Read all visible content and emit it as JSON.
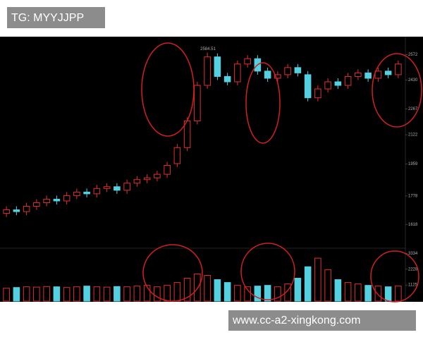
{
  "chart_data": {
    "type": "candlestick",
    "annotations": [
      "TG: MYYJJPP",
      "www.cc-a2-xingkong.com",
      "2584.51"
    ],
    "open": [
      1680,
      1700,
      1690,
      1720,
      1740,
      1760,
      1750,
      1780,
      1800,
      1790,
      1820,
      1830,
      1810,
      1850,
      1870,
      1880,
      1900,
      1960,
      2050,
      2200,
      2400,
      2560,
      2450,
      2420,
      2520,
      2550,
      2480,
      2440,
      2460,
      2500,
      2460,
      2330,
      2380,
      2420,
      2400,
      2450,
      2470,
      2440,
      2480,
      2460
    ],
    "high": [
      1720,
      1720,
      1740,
      1760,
      1780,
      1780,
      1800,
      1820,
      1820,
      1840,
      1850,
      1850,
      1870,
      1890,
      1900,
      1920,
      1970,
      2070,
      2220,
      2420,
      2584,
      2580,
      2470,
      2540,
      2570,
      2570,
      2500,
      2480,
      2520,
      2520,
      2480,
      2400,
      2440,
      2440,
      2470,
      2490,
      2490,
      2500,
      2500,
      2540
    ],
    "low": [
      1660,
      1670,
      1670,
      1700,
      1720,
      1730,
      1730,
      1760,
      1770,
      1770,
      1800,
      1790,
      1790,
      1830,
      1850,
      1860,
      1880,
      1940,
      2030,
      2180,
      2380,
      2430,
      2400,
      2400,
      2500,
      2460,
      2420,
      2420,
      2440,
      2450,
      2310,
      2310,
      2360,
      2380,
      2380,
      2430,
      2420,
      2420,
      2440,
      2440
    ],
    "close": [
      1700,
      1690,
      1720,
      1740,
      1760,
      1750,
      1780,
      1800,
      1790,
      1820,
      1830,
      1810,
      1850,
      1870,
      1880,
      1900,
      1950,
      2050,
      2200,
      2400,
      2560,
      2450,
      2420,
      2520,
      2550,
      2480,
      2440,
      2460,
      2500,
      2470,
      2330,
      2380,
      2420,
      2400,
      2450,
      2470,
      2440,
      2480,
      2460,
      2520
    ],
    "volume": [
      900,
      950,
      1000,
      980,
      1020,
      1000,
      950,
      1000,
      1050,
      1000,
      980,
      1020,
      1000,
      1050,
      1100,
      1000,
      1100,
      1300,
      1600,
      1900,
      1800,
      1500,
      1300,
      1100,
      1000,
      1050,
      1100,
      1000,
      1200,
      1600,
      2400,
      3000,
      2200,
      1500,
      1300,
      1200,
      1100,
      1050,
      1000,
      1050
    ],
    "ylim": [
      1500,
      2650
    ],
    "yticks": [
      1618,
      1778,
      1959,
      2122,
      2267,
      2430,
      2572
    ],
    "volume_ylim": [
      0,
      3400
    ],
    "volume_yticks": [
      1125,
      2228,
      3334
    ],
    "up_color": "#e03030",
    "down_color": "#54d0e0"
  }
}
